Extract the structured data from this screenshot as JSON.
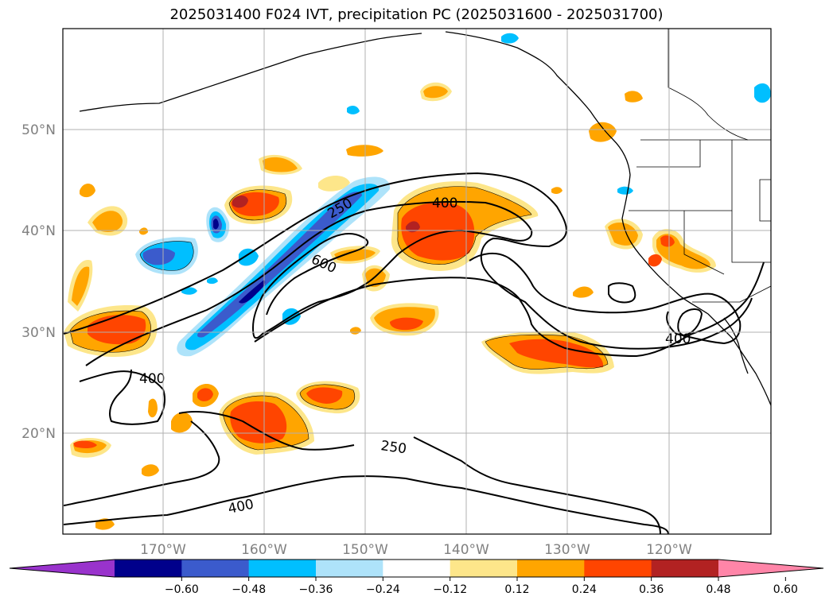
{
  "title": "2025031400 F024 IVT, precipitation PC (2025031600 - 2025031700)",
  "latitude_labels": [
    "50°N",
    "40°N",
    "30°N",
    "20°N"
  ],
  "longitude_labels": [
    "170°W",
    "160°W",
    "150°W",
    "140°W",
    "130°W",
    "120°W"
  ],
  "ivt_contour_labels": [
    "250",
    "400",
    "600",
    "400",
    "400",
    "250",
    "400"
  ],
  "colorbar": {
    "ticks": [
      "−0.60",
      "−0.48",
      "−0.36",
      "−0.24",
      "−0.12",
      "0.12",
      "0.24",
      "0.36",
      "0.48",
      "0.60"
    ],
    "colors": [
      "#9933cc",
      "#00008b",
      "#3b5bcc",
      "#00bfff",
      "#aee3fa",
      "#ffffff",
      "#fde68a",
      "#ffa500",
      "#ff4500",
      "#b22222",
      "#ff85a8"
    ]
  }
}
